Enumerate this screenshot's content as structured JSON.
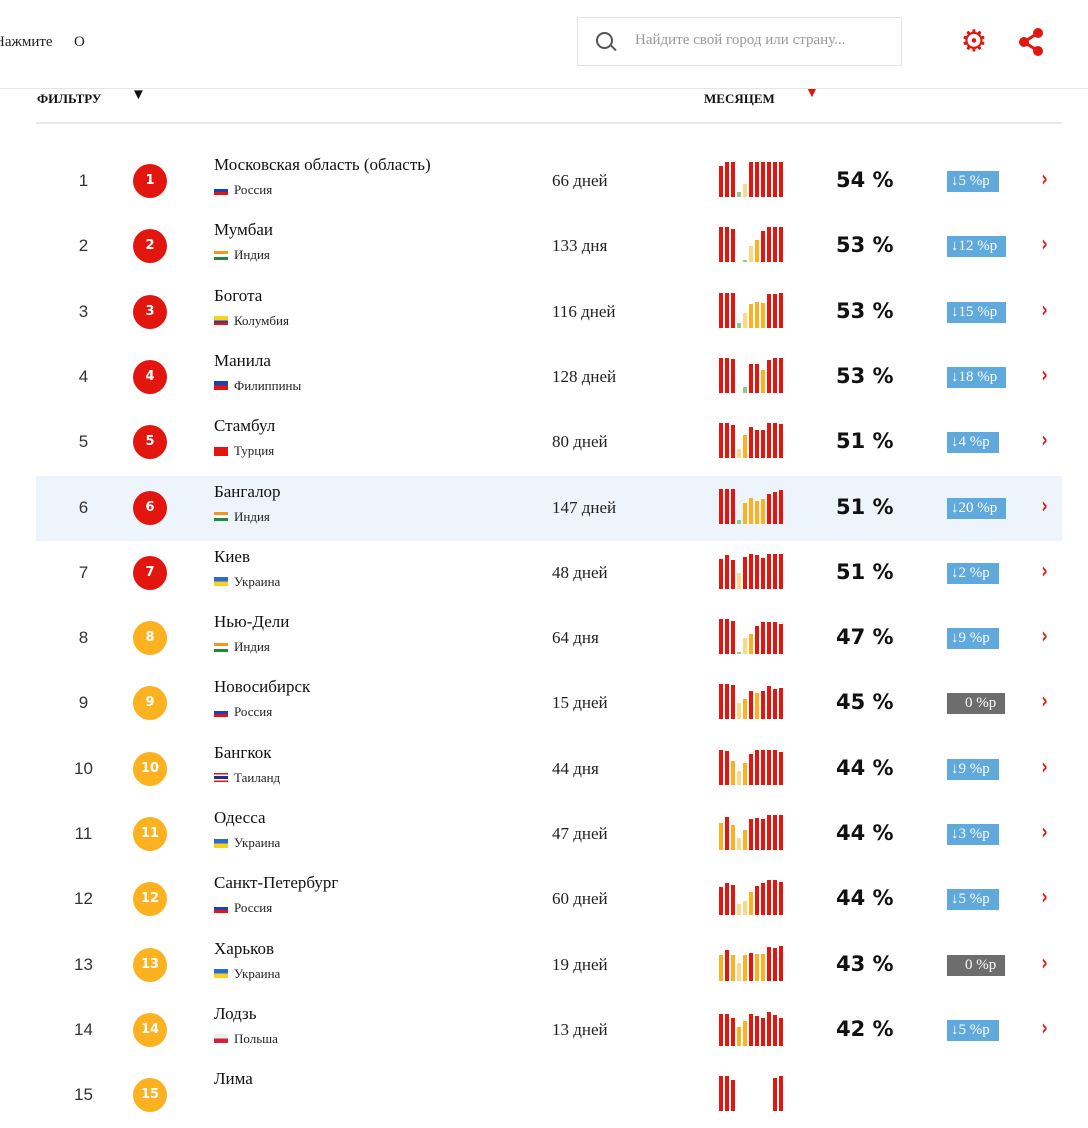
{
  "header": {
    "hint": "Нажмите",
    "hint_key": "O",
    "search_placeholder": "Найдите свой город или страну...",
    "settings_icon": "gear-icon",
    "share_icon": "share-icon"
  },
  "columns": {
    "filter": "ФИЛЬТРУ",
    "filter_arrow": "▼",
    "month": "МЕСЯЦЕМ",
    "month_arrow": "▼"
  },
  "colors": {
    "red": "#e3160f",
    "orange": "#fbb120",
    "light": "#fdd88a",
    "green": "#8fcb8f",
    "badge_down": "#5fa9dd",
    "badge_zero": "#6d6d6d",
    "accent": "#e0160f"
  },
  "rows": [
    {
      "rank": "1",
      "name": "Московская область (область)",
      "country": "Россия",
      "flag": "ru",
      "days": "66 дней",
      "pct": "54 %",
      "change": "↓5 %p",
      "trend": "down",
      "spark": [
        88,
        100,
        100,
        15,
        38,
        100,
        100,
        100,
        100,
        100,
        100
      ]
    },
    {
      "rank": "2",
      "name": "Мумбаи",
      "country": "Индия",
      "flag": "in",
      "days": "133 дня",
      "pct": "53 %",
      "change": "↓12 %p",
      "trend": "down",
      "spark": [
        100,
        100,
        96,
        0,
        8,
        48,
        65,
        90,
        100,
        100,
        100
      ]
    },
    {
      "rank": "3",
      "name": "Богота",
      "country": "Колумбия",
      "flag": "co",
      "days": "116 дней",
      "pct": "53 %",
      "change": "↓15 %p",
      "trend": "down",
      "spark": [
        100,
        100,
        100,
        12,
        42,
        68,
        74,
        70,
        95,
        95,
        98
      ]
    },
    {
      "rank": "4",
      "name": "Манила",
      "country": "Филиппины",
      "flag": "ph",
      "days": "128 дней",
      "pct": "53 %",
      "change": "↓18 %p",
      "trend": "down",
      "spark": [
        100,
        100,
        98,
        0,
        18,
        82,
        84,
        65,
        95,
        100,
        100
      ]
    },
    {
      "rank": "5",
      "name": "Стамбул",
      "country": "Турция",
      "flag": "tr",
      "days": "80 дней",
      "pct": "51 %",
      "change": "↓4 %p",
      "trend": "down",
      "spark": [
        100,
        100,
        95,
        25,
        65,
        88,
        82,
        82,
        100,
        100,
        98
      ]
    },
    {
      "rank": "6",
      "name": "Бангалор",
      "country": "Индия",
      "flag": "in",
      "days": "147 дней",
      "pct": "51 %",
      "change": "↓20 %p",
      "trend": "down",
      "spark": [
        100,
        100,
        100,
        10,
        60,
        72,
        65,
        70,
        85,
        90,
        95
      ]
    },
    {
      "rank": "7",
      "name": "Киев",
      "country": "Украина",
      "flag": "ua",
      "days": "48 дней",
      "pct": "51 %",
      "change": "↓2 %p",
      "trend": "down",
      "spark": [
        85,
        98,
        82,
        45,
        92,
        100,
        96,
        88,
        100,
        100,
        100
      ]
    },
    {
      "rank": "8",
      "name": "Нью-Дели",
      "country": "Индия",
      "flag": "in",
      "days": "64 дня",
      "pct": "47 %",
      "change": "↓9 %p",
      "trend": "down",
      "spark": [
        100,
        100,
        95,
        6,
        45,
        58,
        80,
        92,
        92,
        92,
        85
      ]
    },
    {
      "rank": "9",
      "name": "Новосибирск",
      "country": "Россия",
      "flag": "ru",
      "days": "15 дней",
      "pct": "45 %",
      "change": "0 %p",
      "trend": "zero",
      "spark": [
        100,
        100,
        98,
        48,
        58,
        80,
        76,
        80,
        96,
        86,
        90
      ]
    },
    {
      "rank": "10",
      "name": "Бангкок",
      "country": "Таиланд",
      "flag": "th",
      "days": "44 дня",
      "pct": "44 %",
      "change": "↓9 %p",
      "trend": "down",
      "spark": [
        98,
        96,
        68,
        40,
        63,
        88,
        100,
        100,
        100,
        100,
        94
      ]
    },
    {
      "rank": "11",
      "name": "Одесса",
      "country": "Украина",
      "flag": "ua",
      "days": "47 дней",
      "pct": "44 %",
      "change": "↓3 %p",
      "trend": "down",
      "spark": [
        76,
        94,
        72,
        33,
        56,
        90,
        92,
        90,
        100,
        100,
        100
      ]
    },
    {
      "rank": "12",
      "name": "Санкт-Петербург",
      "country": "Россия",
      "flag": "ru",
      "days": "60 дней",
      "pct": "44 %",
      "change": "↓5 %p",
      "trend": "down",
      "spark": [
        82,
        92,
        86,
        33,
        42,
        68,
        84,
        92,
        100,
        100,
        96
      ]
    },
    {
      "rank": "13",
      "name": "Харьков",
      "country": "Украина",
      "flag": "ua",
      "days": "19 дней",
      "pct": "43 %",
      "change": "0 %p",
      "trend": "zero",
      "spark": [
        72,
        88,
        72,
        50,
        72,
        80,
        76,
        76,
        96,
        92,
        100
      ]
    },
    {
      "rank": "14",
      "name": "Лодзь",
      "country": "Польша",
      "flag": "pl",
      "days": "13 дней",
      "pct": "42 %",
      "change": "↓5 %p",
      "trend": "down",
      "spark": [
        90,
        92,
        80,
        55,
        72,
        90,
        86,
        80,
        96,
        88,
        80
      ]
    },
    {
      "rank": "15",
      "name": "Лима",
      "country": "",
      "flag": "",
      "days": "",
      "pct": "",
      "change": "",
      "trend": "",
      "spark": [
        100,
        100,
        90,
        0,
        0,
        0,
        0,
        0,
        0,
        95,
        100
      ]
    }
  ]
}
